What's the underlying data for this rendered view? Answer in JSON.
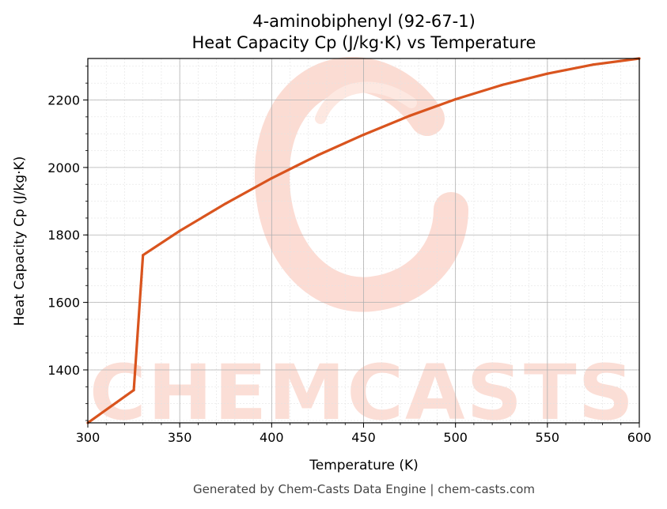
{
  "chart_data": {
    "type": "line",
    "title_line1": "4-aminobiphenyl (92-67-1)",
    "title_line2": "Heat Capacity Cp (J/kg·K) vs Temperature",
    "xlabel": "Temperature (K)",
    "ylabel": "Heat Capacity Cp (J/kg·K)",
    "xlim": [
      300,
      600
    ],
    "ylim": [
      1243,
      2323
    ],
    "xticks": [
      300,
      350,
      400,
      450,
      500,
      550,
      600
    ],
    "yticks": [
      1400,
      1600,
      1800,
      2000,
      2200
    ],
    "grid": true,
    "line_color": "#d9541e",
    "series": [
      {
        "x": [
          300,
          325,
          330,
          350,
          375,
          400,
          425,
          450,
          475,
          500,
          525,
          550,
          575,
          600
        ],
        "y": [
          1243,
          1340,
          1740,
          1812,
          1893,
          1968,
          2036,
          2097,
          2153,
          2202,
          2244,
          2278,
          2305,
          2323
        ]
      }
    ]
  },
  "watermark": {
    "text": "CHEMCASTS",
    "color": "#fbd6cc"
  },
  "footer": "Generated by Chem-Casts Data Engine | chem-casts.com"
}
